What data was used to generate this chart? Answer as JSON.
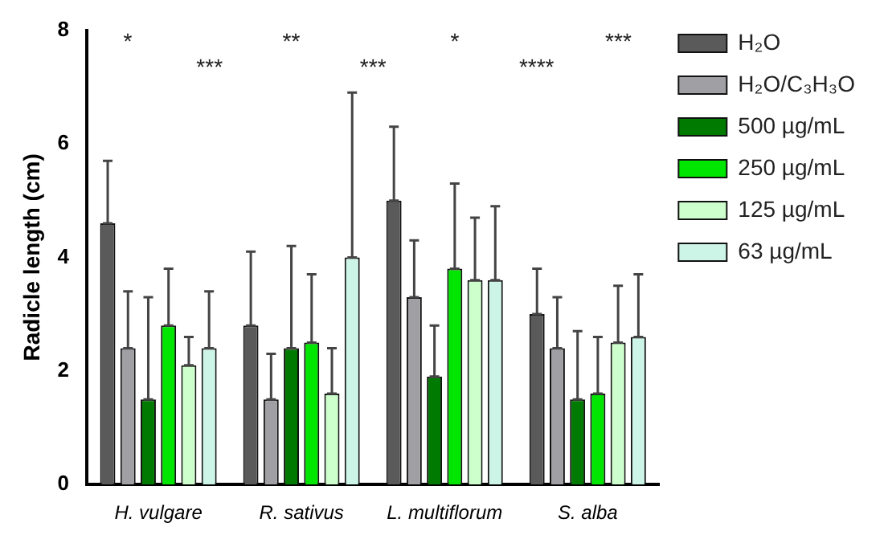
{
  "chart_data": {
    "type": "bar",
    "ylabel": "Radicle length (cm)",
    "categories": [
      "H. vulgare",
      "R. sativus",
      "L. multiflorum",
      "S. alba"
    ],
    "ylim": [
      0,
      8
    ],
    "yticks": [
      0,
      2,
      4,
      6,
      8
    ],
    "legend": "right",
    "grid": false,
    "series": [
      {
        "name": "H₂O",
        "color": "#5a5a5a",
        "values": [
          4.6,
          2.8,
          5.0,
          3.0
        ],
        "errors": [
          [
            4.6,
            5.7
          ],
          [
            2.8,
            4.1
          ],
          [
            5.0,
            6.3
          ],
          [
            3.0,
            3.8
          ]
        ]
      },
      {
        "name": "H₂O/C₃H₃O",
        "color": "#a0a0a4",
        "values": [
          2.4,
          1.5,
          3.3,
          2.4
        ],
        "errors": [
          [
            2.4,
            3.4
          ],
          [
            1.5,
            2.3
          ],
          [
            3.3,
            4.3
          ],
          [
            2.4,
            3.3
          ]
        ]
      },
      {
        "name": "500 µg/mL",
        "color": "#007a00",
        "values": [
          1.5,
          2.4,
          1.9,
          1.5
        ],
        "errors": [
          [
            1.5,
            3.3
          ],
          [
            2.4,
            4.2
          ],
          [
            1.9,
            2.8
          ],
          [
            1.5,
            2.7
          ]
        ]
      },
      {
        "name": "250 µg/mL",
        "color": "#00e600",
        "values": [
          2.8,
          2.5,
          3.8,
          1.6
        ],
        "errors": [
          [
            2.8,
            3.8
          ],
          [
            2.5,
            3.7
          ],
          [
            3.8,
            5.3
          ],
          [
            1.6,
            2.6
          ]
        ]
      },
      {
        "name": "125 µg/mL",
        "color": "#ccffcc",
        "values": [
          2.1,
          1.6,
          3.6,
          2.5
        ],
        "errors": [
          [
            2.1,
            2.6
          ],
          [
            1.6,
            2.4
          ],
          [
            3.6,
            4.7
          ],
          [
            2.5,
            3.5
          ]
        ]
      },
      {
        "name": "63 µg/mL",
        "color": "#ccf5e8",
        "values": [
          2.4,
          4.0,
          3.6,
          2.6
        ],
        "errors": [
          [
            2.4,
            3.4
          ],
          [
            4.0,
            6.9
          ],
          [
            3.6,
            4.9
          ],
          [
            2.6,
            3.7
          ]
        ]
      }
    ],
    "annotations": [
      "*",
      "***",
      "**",
      "***",
      "*",
      "****",
      "***"
    ]
  }
}
